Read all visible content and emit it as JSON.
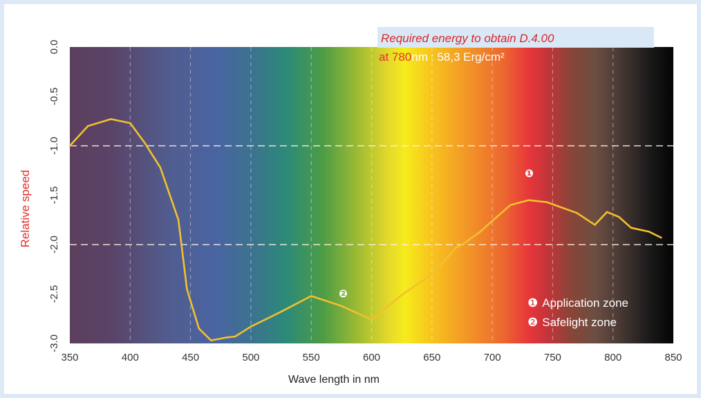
{
  "chart_data": {
    "type": "line",
    "xlabel": "Wave length in nm",
    "ylabel": "Relative speed",
    "xlim": [
      350,
      850
    ],
    "ylim": [
      -3.0,
      0.0
    ],
    "xticks": [
      "350",
      "400",
      "450",
      "500",
      "550",
      "600",
      "650",
      "700",
      "750",
      "800",
      "850"
    ],
    "yticks": [
      "0.0",
      "-0.5",
      "-1.0",
      "-1.5",
      "-2.0",
      "-2.5",
      "-3.0"
    ],
    "dashed_horizontal_lines": [
      -1.0,
      -2.0
    ],
    "background": "visible spectrum color gradient",
    "line_color": "#f2c12e",
    "series": [
      {
        "x": [
          350,
          365,
          384,
          400,
          412,
          425,
          440,
          447,
          457,
          467,
          480,
          487,
          500,
          525,
          550,
          575,
          600,
          625,
          650,
          660,
          670,
          675,
          690,
          700,
          715,
          730,
          745,
          770,
          785,
          795,
          805,
          815,
          830,
          840
        ],
        "y": [
          -1.0,
          -0.8,
          -0.73,
          -0.77,
          -0.97,
          -1.22,
          -1.75,
          -2.45,
          -2.85,
          -2.97,
          -2.94,
          -2.93,
          -2.83,
          -2.68,
          -2.52,
          -2.62,
          -2.76,
          -2.51,
          -2.3,
          -2.17,
          -2.03,
          -2.0,
          -1.87,
          -1.76,
          -1.6,
          -1.55,
          -1.57,
          -1.68,
          -1.8,
          -1.67,
          -1.72,
          -1.83,
          -1.87,
          -1.93
        ]
      }
    ],
    "annotations": {
      "energy_title": "Required energy to obtain D.4.00",
      "energy_at": "at 780",
      "energy_unit": "nm",
      "energy_value": ": 58,3 Erg/cm²",
      "marker_1": "❶",
      "marker_2": "❷"
    },
    "legend": [
      {
        "marker": "❶",
        "label": "Application zone"
      },
      {
        "marker": "❷",
        "label": "Safelight zone"
      }
    ]
  }
}
